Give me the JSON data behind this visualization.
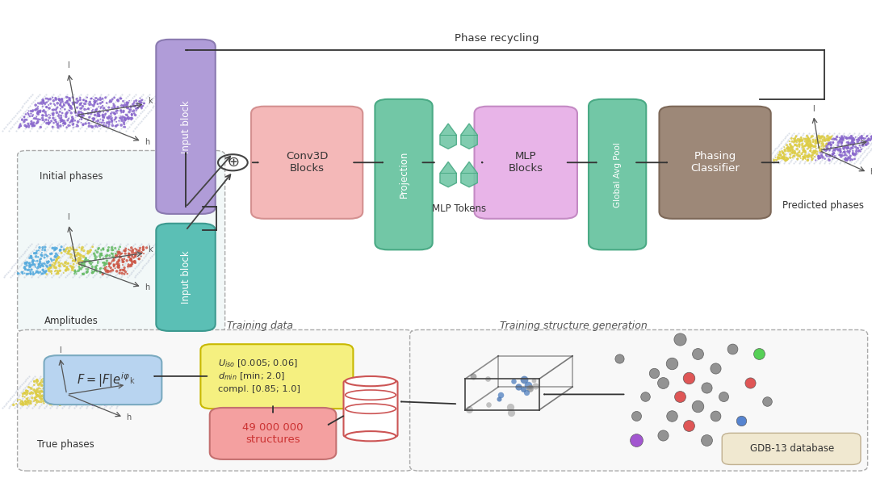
{
  "bg_color": "#ffffff",
  "input_block_top_color": "#b09cd8",
  "input_block_top_edge": "#8a7ab0",
  "input_block_bot_color": "#5bbfb5",
  "input_block_bot_edge": "#3d9a90",
  "conv3d_color": "#f4b8b8",
  "conv3d_edge": "#d49090",
  "projection_color": "#72c7a6",
  "projection_edge": "#4aaa85",
  "mlp_color": "#e8b4e8",
  "mlp_edge": "#c48ac4",
  "global_avg_color": "#72c7a6",
  "global_avg_edge": "#4aaa85",
  "phasing_color": "#9d8878",
  "phasing_edge": "#7d6858",
  "formula_bg": "#b8d4f0",
  "formula_edge": "#7aaac0",
  "yellow_bg": "#f5f080",
  "yellow_edge": "#c8b800",
  "struct_bg": "#f4a0a0",
  "struct_edge": "#c47070",
  "struct_text": "#cc3333",
  "gdb_bg": "#f0e8d0",
  "gdb_edge": "#c0b090",
  "phase_recycling_label": "Phase recycling",
  "mlp_tokens_label": "MLP Tokens",
  "training_data_label": "Training data",
  "training_struct_label": "Training structure generation",
  "gdb13_label": "GDB-13 database",
  "initial_phases_label": "Initial phases",
  "amplitudes_label": "Amplitudes",
  "true_phases_label": "True phases",
  "predicted_phases_label": "Predicted phases"
}
